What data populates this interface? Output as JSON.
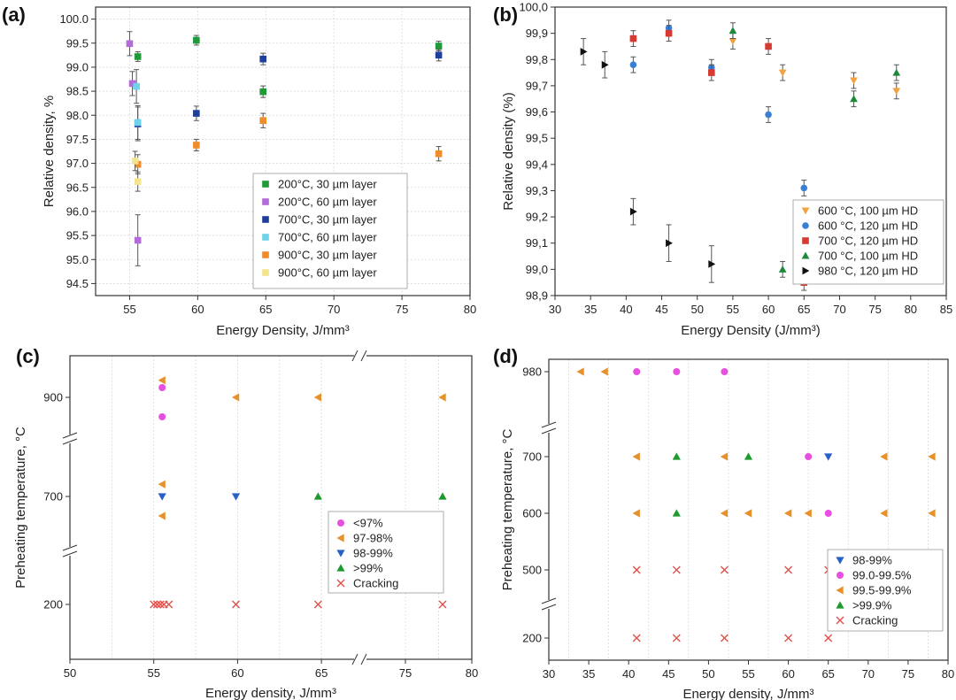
{
  "colors": {
    "green": "#1e9a3a",
    "purple": "#b36bd9",
    "navy": "#1f3f9c",
    "cyan": "#6ed2ea",
    "orange": "#ef8d2c",
    "lightyellow": "#f3e58e",
    "ptorange": "#f2a241",
    "blue": "#3a7fd6",
    "red": "#d63a33",
    "dkgreen": "#1c8a3a",
    "black": "#111111",
    "magenta": "#e64fe0",
    "legend_orange": "#e8902a",
    "legend_blue": "#2860c8",
    "legend_green": "#1d9a2e",
    "cross_red": "#e0504a"
  },
  "chart_data": [
    {
      "panel": "(a)",
      "type": "scatter",
      "xlabel": "Energy Density, J/mm³",
      "ylabel": "Relative density, %",
      "xlim": [
        52.5,
        80
      ],
      "ylim": [
        94.25,
        100.25
      ],
      "xticks": [
        "55",
        "60",
        "65",
        "70",
        "75",
        "80"
      ],
      "yticks": [
        "94.5",
        "95.0",
        "95.5",
        "96.0",
        "96.5",
        "97.0",
        "97.5",
        "98.0",
        "98.5",
        "99.0",
        "99.5",
        "100.0"
      ],
      "grid": true,
      "legend_position": "lower-right",
      "series": [
        {
          "name": "200°C, 30 µm layer",
          "marker": "square",
          "color": "green",
          "x": [
            55.6,
            59.9,
            64.8,
            77.7
          ],
          "y": [
            99.22,
            99.56,
            98.49,
            99.44
          ],
          "err": [
            0.1,
            0.1,
            0.12,
            0.1
          ]
        },
        {
          "name": "200°C, 60 µm layer",
          "marker": "square",
          "color": "purple",
          "x": [
            55.0,
            55.2,
            55.6
          ],
          "y": [
            99.49,
            98.66,
            95.4
          ],
          "err": [
            0.25,
            0.25,
            0.53
          ]
        },
        {
          "name": "700°C, 30 µm layer",
          "marker": "square",
          "color": "navy",
          "x": [
            55.6,
            59.9,
            64.8,
            77.7
          ],
          "y": [
            97.82,
            98.04,
            99.17,
            99.25
          ],
          "err": [
            0.35,
            0.15,
            0.12,
            0.12
          ]
        },
        {
          "name": "700°C, 60 µm layer",
          "marker": "square",
          "color": "cyan",
          "x": [
            55.5,
            55.6
          ],
          "y": [
            98.6,
            97.85
          ],
          "err": [
            0.35,
            0.35
          ]
        },
        {
          "name": "900°C, 30 µm layer",
          "marker": "square",
          "color": "orange",
          "x": [
            55.6,
            59.9,
            64.8,
            77.7
          ],
          "y": [
            96.98,
            97.38,
            97.89,
            97.2
          ],
          "err": [
            0.2,
            0.12,
            0.15,
            0.15
          ]
        },
        {
          "name": "900°C, 60 µm layer",
          "marker": "square",
          "color": "lightyellow",
          "x": [
            55.4,
            55.6
          ],
          "y": [
            97.05,
            96.62
          ],
          "err": [
            0.2,
            0.2
          ]
        }
      ]
    },
    {
      "panel": "(b)",
      "type": "scatter",
      "xlabel": "Energy Density (J/mm³)",
      "ylabel": "Relative density (%)",
      "xlim": [
        30,
        85
      ],
      "ylim": [
        98.9,
        100.0
      ],
      "xticks": [
        "30",
        "35",
        "40",
        "45",
        "50",
        "55",
        "60",
        "65",
        "70",
        "75",
        "80",
        "85"
      ],
      "yticks": [
        "98,9",
        "99,0",
        "99,1",
        "99,2",
        "99,3",
        "99,4",
        "99,5",
        "99,6",
        "99,7",
        "99,8",
        "99,9",
        "100,0"
      ],
      "grid": false,
      "legend_position": "lower-right",
      "series": [
        {
          "name": "600 °C, 100 µm HD",
          "marker": "tri-down",
          "color": "ptorange",
          "x": [
            55,
            62,
            72,
            78
          ],
          "y": [
            99.87,
            99.75,
            99.72,
            99.68
          ],
          "err": [
            0.03,
            0.03,
            0.03,
            0.03
          ]
        },
        {
          "name": "600 °C, 120 µm HD",
          "marker": "circle",
          "color": "blue",
          "x": [
            41,
            46,
            52,
            60,
            65
          ],
          "y": [
            99.78,
            99.92,
            99.77,
            99.59,
            99.31
          ],
          "err": [
            0.03,
            0.03,
            0.03,
            0.03,
            0.03
          ]
        },
        {
          "name": "700 °C, 120 µm HD",
          "marker": "square",
          "color": "red",
          "x": [
            41,
            46,
            52,
            60,
            65
          ],
          "y": [
            99.88,
            99.9,
            99.75,
            99.85,
            98.95
          ],
          "err": [
            0.03,
            0.03,
            0.03,
            0.03,
            0.03
          ]
        },
        {
          "name": "700 °C, 100 µm HD",
          "marker": "tri-up",
          "color": "dkgreen",
          "x": [
            55,
            62,
            72,
            78
          ],
          "y": [
            99.91,
            99.0,
            99.65,
            99.75
          ],
          "err": [
            0.03,
            0.03,
            0.03,
            0.03
          ]
        },
        {
          "name": "980 °C, 120 µm HD",
          "marker": "tri-right",
          "color": "black",
          "x": [
            34,
            37,
            41,
            46,
            52
          ],
          "y": [
            99.83,
            99.78,
            99.22,
            99.1,
            99.02
          ],
          "err": [
            0.05,
            0.05,
            0.05,
            0.07,
            0.07
          ]
        }
      ]
    },
    {
      "panel": "(c)",
      "type": "scatter",
      "xlabel": "Energy density, J/mm³",
      "ylabel": "Preheating temperature, °C",
      "xticks": [
        "50",
        "55",
        "60",
        "65",
        "75",
        "80"
      ],
      "yticks": [
        "200",
        "700",
        "900"
      ],
      "grid": true,
      "legend_position": "lower-right",
      "series": [
        {
          "name": "<97%",
          "marker": "circle",
          "color": "magenta",
          "x": [
            55.5,
            55.5
          ],
          "y": [
            920,
            860
          ]
        },
        {
          "name": "97-98%",
          "marker": "tri-left",
          "color": "legend_orange",
          "x": [
            55.5,
            59.9,
            64.8,
            77.8,
            55.5,
            55.5
          ],
          "y": [
            935,
            900,
            900,
            900,
            725,
            660
          ]
        },
        {
          "name": "98-99%",
          "marker": "tri-down",
          "color": "legend_blue",
          "x": [
            55.5,
            59.9
          ],
          "y": [
            700,
            700
          ]
        },
        {
          "name": ">99%",
          "marker": "tri-up",
          "color": "legend_green",
          "x": [
            64.8,
            77.8
          ],
          "y": [
            700,
            700
          ]
        },
        {
          "name": "Cracking",
          "marker": "x",
          "color": "cross_red",
          "x": [
            55.0,
            55.2,
            55.4,
            55.6,
            55.9,
            59.9,
            64.8,
            77.8
          ],
          "y": [
            200,
            200,
            200,
            200,
            200,
            200,
            200,
            200
          ]
        }
      ]
    },
    {
      "panel": "(d)",
      "type": "scatter",
      "xlabel": "Energy density, J/mm³",
      "ylabel": "Preheating temperature, °C",
      "xlim": [
        30,
        80
      ],
      "xticks": [
        "30",
        "35",
        "40",
        "45",
        "50",
        "55",
        "60",
        "65",
        "70",
        "75",
        "80"
      ],
      "yticks": [
        "200",
        "500",
        "600",
        "700",
        "980"
      ],
      "grid": true,
      "legend_position": "lower-right",
      "series": [
        {
          "name": "98-99%",
          "marker": "tri-down",
          "color": "legend_blue",
          "x": [
            65
          ],
          "y": [
            700
          ]
        },
        {
          "name": "99.0-99.5%",
          "marker": "circle",
          "color": "magenta",
          "x": [
            41,
            46,
            52,
            62.5,
            65
          ],
          "y": [
            980,
            980,
            980,
            700,
            600
          ]
        },
        {
          "name": "99.5-99.9%",
          "marker": "tri-left",
          "color": "legend_orange",
          "x": [
            34,
            37,
            41,
            52,
            72,
            78,
            41,
            52,
            55,
            60,
            62.5,
            72,
            78
          ],
          "y": [
            980,
            980,
            700,
            700,
            700,
            700,
            600,
            600,
            600,
            600,
            600,
            600,
            600
          ]
        },
        {
          "name": ">99.9%",
          "marker": "tri-up",
          "color": "legend_green",
          "x": [
            46,
            55,
            46
          ],
          "y": [
            700,
            700,
            600
          ]
        },
        {
          "name": "Cracking",
          "marker": "x",
          "color": "cross_red",
          "x": [
            41,
            46,
            52,
            60,
            65,
            41,
            46,
            52,
            60,
            65
          ],
          "y": [
            500,
            500,
            500,
            500,
            500,
            200,
            200,
            200,
            200,
            200
          ]
        }
      ]
    }
  ]
}
